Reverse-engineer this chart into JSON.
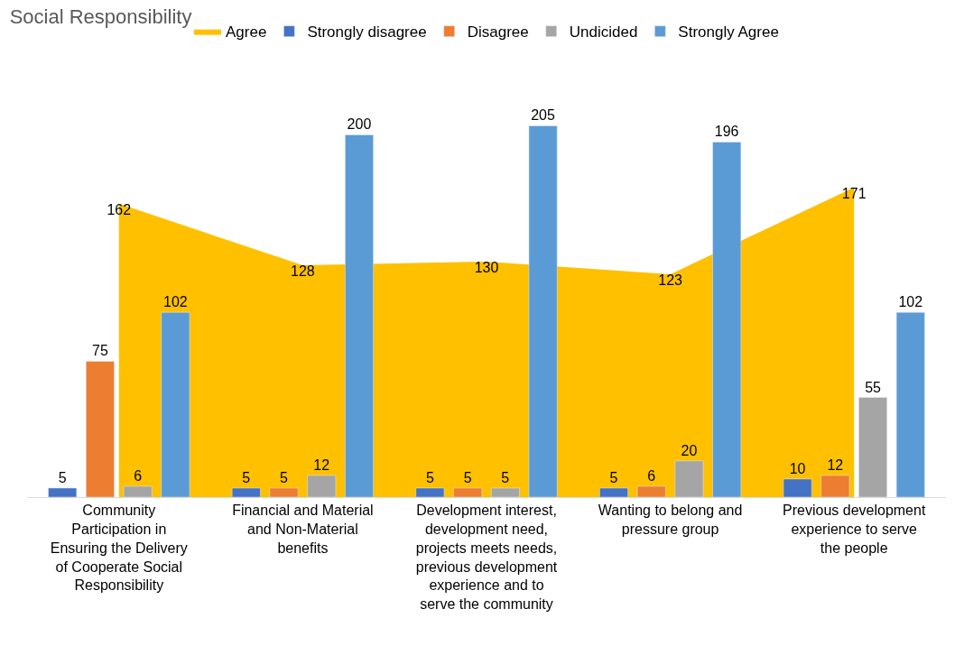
{
  "chart_data": {
    "type": "bar",
    "title": "Social Responsibility",
    "categories": [
      "Community Participation in Ensuring the Delivery of Cooperate Social Responsibility",
      "Financial and Material and Non-Material benefits",
      "Development interest, development need, projects meets needs, previous development experience and to serve the community",
      "Wanting to belong and pressure group",
      "Previous development experience to serve the people"
    ],
    "series": [
      {
        "name": "Agree",
        "type": "area",
        "color": "#ffc000",
        "values": [
          162,
          128,
          130,
          123,
          171
        ]
      },
      {
        "name": "Strongly disagree",
        "color": "#4472c4",
        "values": [
          5,
          5,
          5,
          5,
          10
        ]
      },
      {
        "name": "Disagree",
        "color": "#ed7d31",
        "values": [
          75,
          5,
          5,
          6,
          12
        ]
      },
      {
        "name": "Undicided",
        "color": "#a5a5a5",
        "values": [
          6,
          12,
          5,
          20,
          55
        ]
      },
      {
        "name": "Strongly Agree",
        "color": "#5b9bd5",
        "values": [
          102,
          200,
          205,
          196,
          102
        ]
      }
    ],
    "data_labels": true,
    "legend": "top"
  }
}
